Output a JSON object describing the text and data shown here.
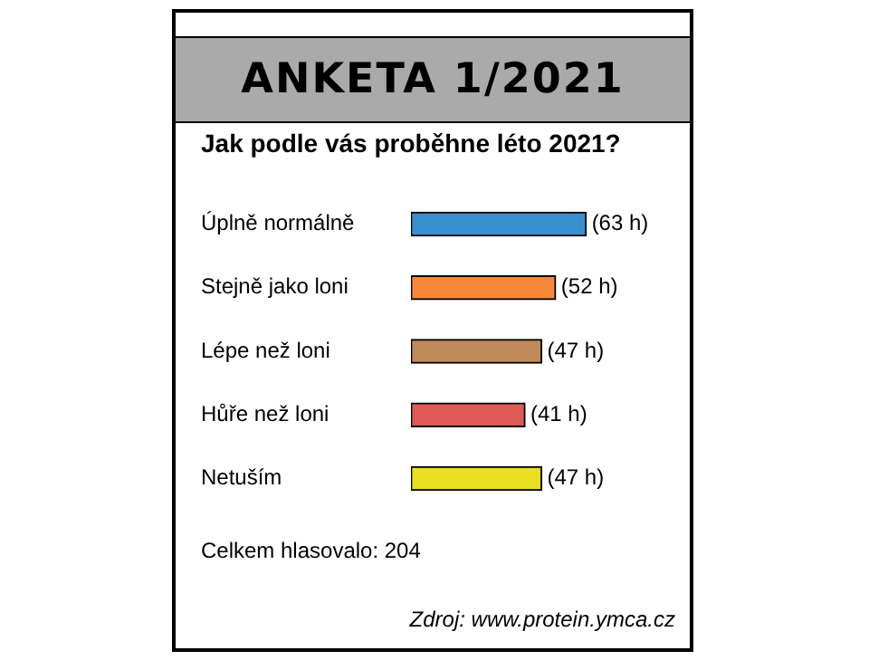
{
  "chart_data": {
    "type": "bar",
    "orientation": "horizontal",
    "title": "ANKETA 1/2021",
    "subtitle": "Jak podle vás proběhne léto 2021?",
    "categories": [
      "Úplně normálně",
      "Stejně jako loni",
      "Lépe než loni",
      "Hůře než loni",
      "Netuším"
    ],
    "values": [
      63,
      52,
      47,
      41,
      47
    ],
    "colors": [
      "#3a8fd0",
      "#f5883a",
      "#c08a5a",
      "#e05a55",
      "#e8e020"
    ],
    "value_labels": [
      "(63 h)",
      "(52 h)",
      "(47 h)",
      "(41 h)",
      "(47 h)"
    ],
    "annotations": [
      "Celkem hlasovalo: 204",
      "Zdroj: www.protein.ymca.cz"
    ],
    "legend": false,
    "tick_labels": "y"
  }
}
